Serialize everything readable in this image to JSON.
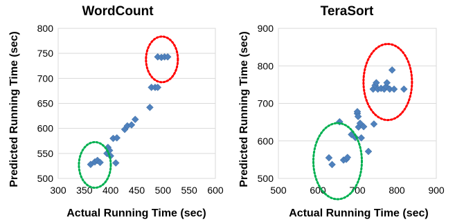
{
  "chart_data": [
    {
      "type": "scatter",
      "title": "WordCount",
      "xlabel": "Actual Running Time (sec)",
      "ylabel": "Predicted Running Time (sec)",
      "xlim": [
        300,
        600
      ],
      "ylim": [
        500,
        800
      ],
      "xticks": [
        "300",
        "350",
        "400",
        "450",
        "500",
        "550",
        "600"
      ],
      "yticks": [
        "500",
        "550",
        "600",
        "650",
        "700",
        "750",
        "800"
      ],
      "grid": "horizontal",
      "marker_color": "#4F81BD",
      "points": [
        {
          "x": 362,
          "y": 528
        },
        {
          "x": 370,
          "y": 533
        },
        {
          "x": 375,
          "y": 536
        },
        {
          "x": 380,
          "y": 532
        },
        {
          "x": 393,
          "y": 550
        },
        {
          "x": 395,
          "y": 562
        },
        {
          "x": 398,
          "y": 556
        },
        {
          "x": 400,
          "y": 545
        },
        {
          "x": 405,
          "y": 580
        },
        {
          "x": 410,
          "y": 531
        },
        {
          "x": 412,
          "y": 581
        },
        {
          "x": 427,
          "y": 598
        },
        {
          "x": 432,
          "y": 605
        },
        {
          "x": 440,
          "y": 607
        },
        {
          "x": 447,
          "y": 618
        },
        {
          "x": 475,
          "y": 642
        },
        {
          "x": 478,
          "y": 682
        },
        {
          "x": 485,
          "y": 682
        },
        {
          "x": 490,
          "y": 682
        },
        {
          "x": 490,
          "y": 743
        },
        {
          "x": 497,
          "y": 742
        },
        {
          "x": 503,
          "y": 743
        },
        {
          "x": 509,
          "y": 743
        }
      ],
      "circles": [
        {
          "cx": 370,
          "cy": 527,
          "rx": 23,
          "ry": 33,
          "color": "#00B050"
        },
        {
          "cx": 498,
          "cy": 738,
          "rx": 23,
          "ry": 33,
          "color": "#FF0000"
        }
      ]
    },
    {
      "type": "scatter",
      "title": "TeraSort",
      "xlabel": "Actual Running Time (sec)",
      "ylabel": "Predicted Running Time (sec)",
      "xlim": [
        500,
        900
      ],
      "ylim": [
        500,
        900
      ],
      "xticks": [
        "500",
        "600",
        "700",
        "800",
        "900"
      ],
      "yticks": [
        "500",
        "600",
        "700",
        "800",
        "900"
      ],
      "grid": "horizontal",
      "marker_color": "#4F81BD",
      "points": [
        {
          "x": 628,
          "y": 555
        },
        {
          "x": 636,
          "y": 537
        },
        {
          "x": 655,
          "y": 651
        },
        {
          "x": 665,
          "y": 549
        },
        {
          "x": 672,
          "y": 551
        },
        {
          "x": 675,
          "y": 556
        },
        {
          "x": 685,
          "y": 617
        },
        {
          "x": 695,
          "y": 609
        },
        {
          "x": 700,
          "y": 673
        },
        {
          "x": 700,
          "y": 678
        },
        {
          "x": 702,
          "y": 665
        },
        {
          "x": 703,
          "y": 637
        },
        {
          "x": 707,
          "y": 647
        },
        {
          "x": 710,
          "y": 608
        },
        {
          "x": 716,
          "y": 638
        },
        {
          "x": 728,
          "y": 572
        },
        {
          "x": 742,
          "y": 645
        },
        {
          "x": 740,
          "y": 738
        },
        {
          "x": 745,
          "y": 748
        },
        {
          "x": 748,
          "y": 755
        },
        {
          "x": 752,
          "y": 738
        },
        {
          "x": 760,
          "y": 740
        },
        {
          "x": 768,
          "y": 738
        },
        {
          "x": 773,
          "y": 745
        },
        {
          "x": 775,
          "y": 755
        },
        {
          "x": 782,
          "y": 738
        },
        {
          "x": 788,
          "y": 789
        },
        {
          "x": 793,
          "y": 738
        },
        {
          "x": 818,
          "y": 738
        }
      ],
      "circles": [
        {
          "cx": 650,
          "cy": 546,
          "rx": 35,
          "ry": 55,
          "color": "#00B050"
        },
        {
          "cx": 777,
          "cy": 757,
          "rx": 35,
          "ry": 55,
          "color": "#FF0000"
        }
      ]
    }
  ]
}
